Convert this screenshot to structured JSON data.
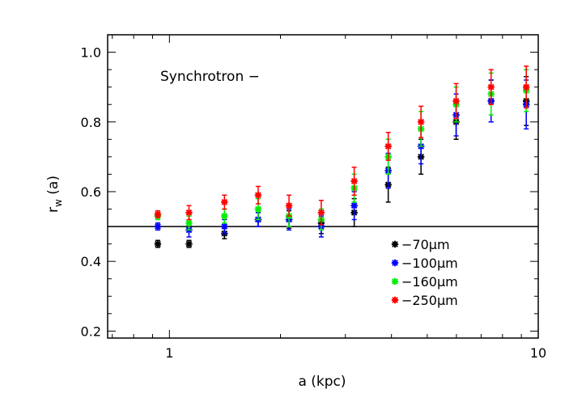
{
  "chart_data": {
    "type": "scatter",
    "title": "",
    "annotation": "Synchrotron  −",
    "xlabel": "a (kpc)",
    "ylabel": "r",
    "ylabel_sub": "w",
    "ylabel_suffix": " (a)",
    "xscale": "log",
    "xlim": [
      0.68,
      10.0
    ],
    "ylim": [
      0.18,
      1.05
    ],
    "xticks": [
      {
        "value": 1,
        "label": "1"
      },
      {
        "value": 10,
        "label": "10"
      }
    ],
    "yticks": [
      {
        "value": 0.2,
        "label": "0.2"
      },
      {
        "value": 0.4,
        "label": "0.4"
      },
      {
        "value": 0.6,
        "label": "0.6"
      },
      {
        "value": 0.8,
        "label": "0.8"
      },
      {
        "value": 1.0,
        "label": "1.0"
      }
    ],
    "reference_line": {
      "y": 0.5
    },
    "legend_position": "bottom-right",
    "x": [
      0.93,
      1.13,
      1.41,
      1.74,
      2.11,
      2.58,
      3.17,
      3.92,
      4.81,
      5.99,
      7.45,
      9.28
    ],
    "series": [
      {
        "name": "−70μm",
        "color": "#000000",
        "values": [
          0.45,
          0.45,
          0.48,
          0.52,
          0.52,
          0.51,
          0.54,
          0.62,
          0.7,
          0.8,
          0.86,
          0.86
        ],
        "errors": [
          0.01,
          0.01,
          0.015,
          0.02,
          0.025,
          0.03,
          0.04,
          0.05,
          0.05,
          0.05,
          0.06,
          0.07
        ]
      },
      {
        "name": "−100μm",
        "color": "#0000ff",
        "values": [
          0.5,
          0.49,
          0.5,
          0.52,
          0.52,
          0.5,
          0.56,
          0.66,
          0.73,
          0.82,
          0.86,
          0.85
        ],
        "errors": [
          0.01,
          0.02,
          0.02,
          0.02,
          0.03,
          0.03,
          0.04,
          0.05,
          0.05,
          0.06,
          0.06,
          0.07
        ]
      },
      {
        "name": "−160μm",
        "color": "#00ee00",
        "values": [
          0.53,
          0.51,
          0.53,
          0.55,
          0.53,
          0.52,
          0.61,
          0.7,
          0.78,
          0.85,
          0.88,
          0.89
        ],
        "errors": [
          0.01,
          0.02,
          0.02,
          0.03,
          0.03,
          0.03,
          0.04,
          0.05,
          0.05,
          0.05,
          0.06,
          0.06
        ]
      },
      {
        "name": "−250μm",
        "color": "#ff0000",
        "values": [
          0.535,
          0.54,
          0.57,
          0.59,
          0.56,
          0.54,
          0.63,
          0.73,
          0.8,
          0.86,
          0.9,
          0.9
        ],
        "errors": [
          0.01,
          0.02,
          0.02,
          0.025,
          0.03,
          0.035,
          0.04,
          0.04,
          0.045,
          0.05,
          0.05,
          0.06
        ]
      }
    ]
  }
}
